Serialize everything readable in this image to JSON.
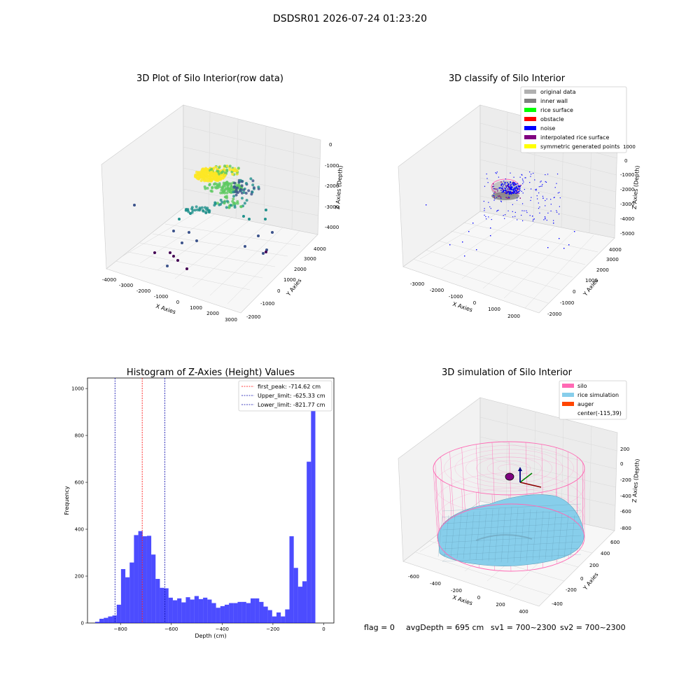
{
  "suptitle": "DSDSR01 2026-07-24 01:23:20",
  "status": {
    "flag": "flag = 0",
    "avg_depth": "avgDepth = 695 cm",
    "sv1": "sv1 = 700~2300",
    "sv2": "sv2 = 700~2300"
  },
  "chart_data": [
    {
      "id": "raw",
      "type": "scatter",
      "title": "3D Plot of Silo Interior(row data)",
      "xlabel": "X Axies",
      "ylabel": "Y Axies",
      "zlabel": "Z Axies (Depth)",
      "xticks": [
        "-4000",
        "-3000",
        "-2000",
        "-1000",
        "0",
        "1000",
        "2000",
        "3000"
      ],
      "yticks": [
        "-2000",
        "-1000",
        "0",
        "1000",
        "2000",
        "3000",
        "4000"
      ],
      "zticks": [
        "0",
        "-1000",
        "-2000",
        "-3000",
        "-4000"
      ],
      "colormap": [
        "#440154",
        "#3b528b",
        "#21918c",
        "#5ec962",
        "#fde725"
      ]
    },
    {
      "id": "classify",
      "type": "scatter",
      "title": "3D classify of Silo Interior",
      "xlabel": "X Axies",
      "ylabel": "Y Axies",
      "zlabel": "Z Axies (Depth)",
      "xticks": [
        "-3000",
        "-2000",
        "-1000",
        "0",
        "1000",
        "2000"
      ],
      "yticks": [
        "-2000",
        "-1000",
        "0",
        "1000",
        "2000",
        "3000",
        "4000"
      ],
      "zticks": [
        "1000",
        "0",
        "-1000",
        "-2000",
        "-3000",
        "-4000",
        "-5000"
      ],
      "legend_position": "top-right",
      "legend": [
        {
          "label": "original data",
          "color": "#b0b0b0"
        },
        {
          "label": "inner wall",
          "color": "#808080"
        },
        {
          "label": "rice surface",
          "color": "#00ff00"
        },
        {
          "label": "obstacle",
          "color": "#ff0000"
        },
        {
          "label": "noise",
          "color": "#0000ff"
        },
        {
          "label": "interpolated rice surface",
          "color": "#800080"
        },
        {
          "label": "symmetric generated points",
          "color": "#ffff00"
        }
      ]
    },
    {
      "id": "hist",
      "type": "bar",
      "title": "Histogram of Z-Axies (Height) Values",
      "xlabel": "Depth (cm)",
      "ylabel": "Frequency",
      "xlim": [
        -930,
        40
      ],
      "ylim": [
        0,
        1045
      ],
      "xticks": [
        -800,
        -600,
        -400,
        -200,
        0
      ],
      "yticks": [
        0,
        200,
        400,
        600,
        800,
        1000
      ],
      "bar_color": "#0000ff",
      "bin_start": -900,
      "bin_width": 17,
      "values": [
        5,
        18,
        22,
        28,
        32,
        78,
        230,
        195,
        258,
        375,
        392,
        370,
        372,
        292,
        188,
        150,
        148,
        108,
        97,
        105,
        88,
        110,
        100,
        115,
        102,
        108,
        100,
        85,
        65,
        72,
        78,
        85,
        85,
        90,
        90,
        85,
        105,
        105,
        90,
        70,
        55,
        28,
        45,
        28,
        58,
        370,
        235,
        155,
        178,
        688,
        1000
      ],
      "lines": [
        {
          "label": "first_peak: -714.62 cm",
          "x": -714.62,
          "color": "#ff0000"
        },
        {
          "label": "Upper_limit: -625.33 cm",
          "x": -625.33,
          "color": "#0000aa"
        },
        {
          "label": "Lower_limit: -821.77 cm",
          "x": -821.77,
          "color": "#0000aa"
        }
      ],
      "legend_position": "top-right"
    },
    {
      "id": "sim",
      "type": "scatter",
      "title": "3D simulation of Silo Interior",
      "xlabel": "X Axies",
      "ylabel": "Y Axies",
      "zlabel": "Z Axies (Depth)",
      "xticks": [
        "-600",
        "-400",
        "-200",
        "0",
        "200",
        "400"
      ],
      "yticks": [
        "-400",
        "-200",
        "0",
        "200",
        "400",
        "600"
      ],
      "zticks": [
        "200",
        "0",
        "-200",
        "-400",
        "-600",
        "-800"
      ],
      "legend_position": "top-right",
      "legend": [
        {
          "label": "silo",
          "color": "#ff69b4"
        },
        {
          "label": "rice simulation",
          "color": "#87ceeb"
        },
        {
          "label": "auger",
          "color": "#ff4500"
        },
        {
          "label": "center(-115,39)",
          "color": ""
        }
      ]
    }
  ]
}
